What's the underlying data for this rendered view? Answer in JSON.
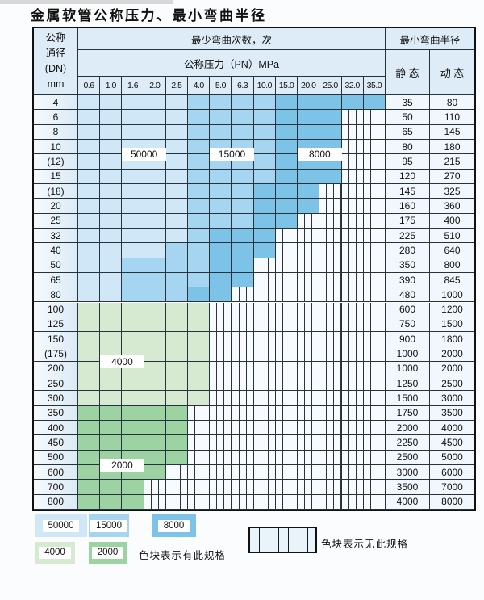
{
  "page": {
    "title": "金属软管公称压力、最小弯曲半径"
  },
  "table": {
    "dn_header_lines": [
      "公称",
      "通径",
      "(DN)",
      "mm"
    ],
    "bend_cycles_header": "最少弯曲次数，次",
    "pressure_header": "公称压力（PN）MPa",
    "pressure_columns": [
      "0.6",
      "1.0",
      "1.6",
      "2.0",
      "2.5",
      "4.0",
      "5.0",
      "6.3",
      "10.0",
      "15.0",
      "20.0",
      "25.0",
      "32.0",
      "35.0"
    ],
    "radius_header": "最小弯曲半径",
    "static_header": "静 态",
    "dynamic_header": "动 态",
    "rows": [
      {
        "dn": "4",
        "bands": "LLLLLMMMMDDDDD",
        "static": "35",
        "dynamic": "80"
      },
      {
        "dn": "6",
        "bands": "LLLLLMMMMDDDhh",
        "static": "50",
        "dynamic": "110"
      },
      {
        "dn": "8",
        "bands": "LLLLLMMMMDDDhh",
        "static": "65",
        "dynamic": "145"
      },
      {
        "dn": "10",
        "bands": "LLLLLMMMMDDDhh",
        "static": "80",
        "dynamic": "180"
      },
      {
        "dn": "(12)",
        "bands": "LLLLLMMMMDDDhh",
        "static": "95",
        "dynamic": "215"
      },
      {
        "dn": "15",
        "bands": "LLLLLMMMMDDDhh",
        "static": "120",
        "dynamic": "270"
      },
      {
        "dn": "(18)",
        "bands": "LLLLLMMMDDDhhh",
        "static": "145",
        "dynamic": "325"
      },
      {
        "dn": "20",
        "bands": "LLLLLMMMDDDhhh",
        "static": "160",
        "dynamic": "360"
      },
      {
        "dn": "25",
        "bands": "LLLLLMMMDDhhhh",
        "static": "175",
        "dynamic": "400"
      },
      {
        "dn": "32",
        "bands": "LLLLLMDDDhhhhh",
        "static": "225",
        "dynamic": "510"
      },
      {
        "dn": "40",
        "bands": "LLLLMMDDDhhhhh",
        "static": "280",
        "dynamic": "640"
      },
      {
        "dn": "50",
        "bands": "LLMMMMDDhhhhhh",
        "static": "350",
        "dynamic": "800"
      },
      {
        "dn": "65",
        "bands": "LLMMMMDDhhhhhh",
        "static": "390",
        "dynamic": "845"
      },
      {
        "dn": "80",
        "bands": "LLMMMDDhhhhhhh",
        "static": "480",
        "dynamic": "1000"
      },
      {
        "dn": "100",
        "bands": "GGGGGGhhhhhhhh",
        "static": "600",
        "dynamic": "1200"
      },
      {
        "dn": "125",
        "bands": "GGGGGGhhhhhhhh",
        "static": "750",
        "dynamic": "1500"
      },
      {
        "dn": "150",
        "bands": "GGGGGGhhhhhhhh",
        "static": "900",
        "dynamic": "1800"
      },
      {
        "dn": "(175)",
        "bands": "GGGGGGhhhhhhhh",
        "static": "1000",
        "dynamic": "2000"
      },
      {
        "dn": "200",
        "bands": "GGGGGGhhhhhhhh",
        "static": "1000",
        "dynamic": "2000"
      },
      {
        "dn": "250",
        "bands": "GGGGGGhhhhhhhh",
        "static": "1250",
        "dynamic": "2500"
      },
      {
        "dn": "300",
        "bands": "GGGGGGhhhhhhhh",
        "static": "1500",
        "dynamic": "3000"
      },
      {
        "dn": "350",
        "bands": "EEEEEhhhhhhhhh",
        "static": "1750",
        "dynamic": "3500"
      },
      {
        "dn": "400",
        "bands": "EEEEEhhhhhhhhh",
        "static": "2000",
        "dynamic": "4000"
      },
      {
        "dn": "450",
        "bands": "EEEEEhhhhhhhhh",
        "static": "2250",
        "dynamic": "4500"
      },
      {
        "dn": "500",
        "bands": "EEEEEhhhhhhhhh",
        "static": "2500",
        "dynamic": "5000"
      },
      {
        "dn": "600",
        "bands": "EEEEhhhhhhhhhh",
        "static": "3000",
        "dynamic": "6000"
      },
      {
        "dn": "700",
        "bands": "EEEhhhhhhhhhhh",
        "static": "3500",
        "dynamic": "7000"
      },
      {
        "dn": "800",
        "bands": "EEEhhhhhhhhhhh",
        "static": "4000",
        "dynamic": "8000"
      }
    ],
    "band_labels": [
      {
        "text": "50000",
        "cols": [
          2,
          4
        ],
        "row_boundary": 4
      },
      {
        "text": "15000",
        "cols": [
          6,
          8
        ],
        "row_boundary": 4
      },
      {
        "text": "8000",
        "cols": [
          10,
          12
        ],
        "row_boundary": 4
      },
      {
        "text": "4000",
        "cols": [
          1,
          3
        ],
        "row_boundary": 18
      },
      {
        "text": "2000",
        "cols": [
          1,
          3
        ],
        "row_boundary": 25
      }
    ]
  },
  "legend": {
    "swatches": [
      {
        "value": "50000",
        "band": "L"
      },
      {
        "value": "15000",
        "band": "M"
      },
      {
        "value": "8000",
        "band": "D"
      },
      {
        "value": "4000",
        "band": "G"
      },
      {
        "value": "2000",
        "band": "E"
      }
    ],
    "has_spec_label": "色块表示有此规格",
    "no_spec_label": "色块表示无此规格"
  },
  "colors": {
    "band_50000": "#cfe7f6",
    "band_15000": "#a5d5f0",
    "band_8000": "#7dc3e8",
    "band_4000": "#d6e9d1",
    "band_2000": "#9dd2a3",
    "header_fill": "#ddecf6",
    "grid_line": "#26323c"
  }
}
